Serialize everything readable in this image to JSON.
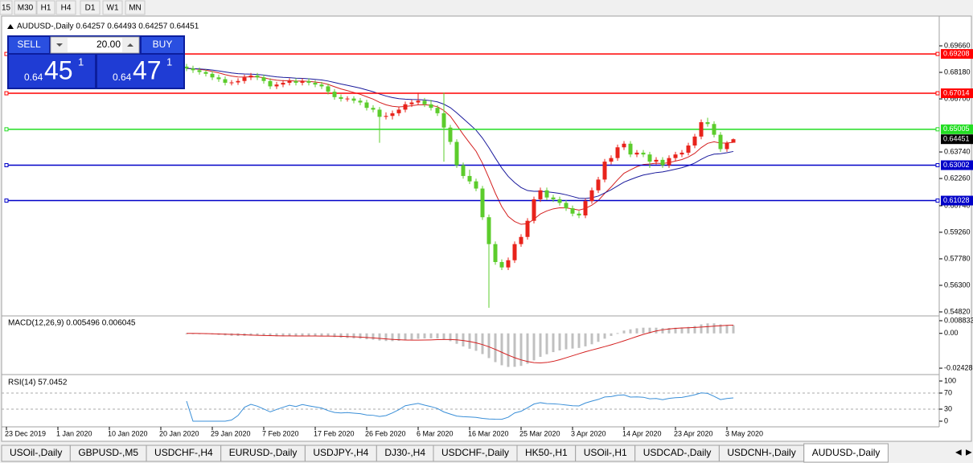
{
  "toolbar": {
    "timeframes": [
      "15",
      "M30",
      "H1",
      "H4",
      "D1",
      "W1",
      "MN"
    ]
  },
  "chart_data": {
    "type": "candlestick",
    "title": "AUDUSD-,Daily 0.64257 0.64493 0.64257 0.64451",
    "ylim": [
      0.5464,
      0.7132
    ],
    "yticks": [
      {
        "value": 0.6966,
        "label": "0.69660"
      },
      {
        "value": 0.6818,
        "label": "0.68180"
      },
      {
        "value": 0.667,
        "label": "0.66700"
      },
      {
        "value": 0.6374,
        "label": "0.63740"
      },
      {
        "value": 0.6226,
        "label": "0.62260"
      },
      {
        "value": 0.6074,
        "label": "0.60740"
      },
      {
        "value": 0.5926,
        "label": "0.59260"
      },
      {
        "value": 0.5778,
        "label": "0.57780"
      },
      {
        "value": 0.563,
        "label": "0.56300"
      },
      {
        "value": 0.5482,
        "label": "0.54820"
      }
    ],
    "xlim": [
      -1,
      144
    ],
    "xticks": [
      {
        "value": 0,
        "label": "23 Dec 2019"
      },
      {
        "value": 8,
        "label": "1 Jan 2020"
      },
      {
        "value": 16,
        "label": "10 Jan 2020"
      },
      {
        "value": 24,
        "label": "20 Jan 2020"
      },
      {
        "value": 32,
        "label": "29 Jan 2020"
      },
      {
        "value": 40,
        "label": "7 Feb 2020"
      },
      {
        "value": 48,
        "label": "17 Feb 2020"
      },
      {
        "value": 56,
        "label": "26 Feb 2020"
      },
      {
        "value": 64,
        "label": "6 Mar 2020"
      },
      {
        "value": 72,
        "label": "16 Mar 2020"
      },
      {
        "value": 80,
        "label": "25 Mar 2020"
      },
      {
        "value": 88,
        "label": "3 Apr 2020"
      },
      {
        "value": 96,
        "label": "14 Apr 2020"
      },
      {
        "value": 104,
        "label": "23 Apr 2020"
      },
      {
        "value": 112,
        "label": "3 May 2020"
      }
    ],
    "up_color": "#e8231b",
    "down_color": "#5ccc2c",
    "ma_colors": [
      "#d42020",
      "#1a1a9c"
    ],
    "candles": [
      [
        28,
        0.685,
        0.6865,
        0.6825,
        0.684
      ],
      [
        29,
        0.684,
        0.6855,
        0.6815,
        0.683
      ],
      [
        30,
        0.683,
        0.6845,
        0.6805,
        0.682
      ],
      [
        31,
        0.682,
        0.6835,
        0.6795,
        0.681
      ],
      [
        32,
        0.681,
        0.6825,
        0.6775,
        0.679
      ],
      [
        33,
        0.679,
        0.6805,
        0.6765,
        0.678
      ],
      [
        34,
        0.678,
        0.6795,
        0.6745,
        0.676
      ],
      [
        35,
        0.676,
        0.6775,
        0.6745,
        0.6762
      ],
      [
        36,
        0.6762,
        0.6785,
        0.6748,
        0.677
      ],
      [
        37,
        0.677,
        0.6805,
        0.6755,
        0.679
      ],
      [
        38,
        0.679,
        0.6815,
        0.6775,
        0.68
      ],
      [
        39,
        0.68,
        0.6815,
        0.6775,
        0.679
      ],
      [
        40,
        0.679,
        0.6805,
        0.6755,
        0.677
      ],
      [
        41,
        0.677,
        0.6785,
        0.6725,
        0.674
      ],
      [
        42,
        0.674,
        0.6765,
        0.6725,
        0.675
      ],
      [
        43,
        0.675,
        0.6775,
        0.6735,
        0.676
      ],
      [
        44,
        0.676,
        0.6785,
        0.6745,
        0.677
      ],
      [
        45,
        0.677,
        0.6785,
        0.6745,
        0.676
      ],
      [
        46,
        0.676,
        0.6785,
        0.6745,
        0.677
      ],
      [
        47,
        0.677,
        0.6785,
        0.6745,
        0.676
      ],
      [
        48,
        0.676,
        0.6775,
        0.6735,
        0.675
      ],
      [
        49,
        0.675,
        0.6765,
        0.6725,
        0.674
      ],
      [
        50,
        0.674,
        0.6755,
        0.6695,
        0.671
      ],
      [
        51,
        0.671,
        0.6725,
        0.6665,
        0.668
      ],
      [
        52,
        0.668,
        0.6695,
        0.6655,
        0.667
      ],
      [
        53,
        0.667,
        0.6685,
        0.6655,
        0.6672
      ],
      [
        54,
        0.6672,
        0.6685,
        0.6645,
        0.666
      ],
      [
        55,
        0.666,
        0.6675,
        0.6635,
        0.665
      ],
      [
        56,
        0.665,
        0.6665,
        0.6605,
        0.662
      ],
      [
        57,
        0.662,
        0.6635,
        0.6595,
        0.661
      ],
      [
        58,
        0.661,
        0.6625,
        0.6425,
        0.657
      ],
      [
        59,
        0.657,
        0.6595,
        0.6555,
        0.6575
      ],
      [
        60,
        0.6575,
        0.6605,
        0.6555,
        0.659
      ],
      [
        61,
        0.659,
        0.6625,
        0.6575,
        0.661
      ],
      [
        62,
        0.661,
        0.6655,
        0.6595,
        0.664
      ],
      [
        63,
        0.664,
        0.6665,
        0.6625,
        0.665
      ],
      [
        64,
        0.665,
        0.6705,
        0.6635,
        0.666
      ],
      [
        65,
        0.666,
        0.6675,
        0.6625,
        0.664
      ],
      [
        66,
        0.664,
        0.6665,
        0.6605,
        0.662
      ],
      [
        67,
        0.662,
        0.6635,
        0.6575,
        0.659
      ],
      [
        68,
        0.659,
        0.6705,
        0.632,
        0.651
      ],
      [
        69,
        0.651,
        0.6525,
        0.6415,
        0.643
      ],
      [
        70,
        0.643,
        0.6445,
        0.6285,
        0.63
      ],
      [
        71,
        0.63,
        0.6315,
        0.6225,
        0.624
      ],
      [
        72,
        0.624,
        0.6275,
        0.6195,
        0.621
      ],
      [
        73,
        0.621,
        0.6225,
        0.6155,
        0.617
      ],
      [
        74,
        0.617,
        0.6185,
        0.5995,
        0.601
      ],
      [
        75,
        0.601,
        0.6025,
        0.5505,
        0.586
      ],
      [
        76,
        0.586,
        0.5875,
        0.5745,
        0.576
      ],
      [
        77,
        0.576,
        0.5775,
        0.5715,
        0.573
      ],
      [
        78,
        0.573,
        0.5785,
        0.5715,
        0.577
      ],
      [
        79,
        0.577,
        0.5875,
        0.5755,
        0.586
      ],
      [
        80,
        0.586,
        0.5915,
        0.5845,
        0.59
      ],
      [
        81,
        0.59,
        0.6005,
        0.5885,
        0.599
      ],
      [
        82,
        0.599,
        0.6125,
        0.5975,
        0.611
      ],
      [
        83,
        0.611,
        0.6175,
        0.6095,
        0.616
      ],
      [
        84,
        0.616,
        0.6175,
        0.6105,
        0.612
      ],
      [
        85,
        0.612,
        0.6135,
        0.6095,
        0.611
      ],
      [
        86,
        0.611,
        0.6125,
        0.6075,
        0.609
      ],
      [
        87,
        0.609,
        0.6105,
        0.6045,
        0.606
      ],
      [
        88,
        0.606,
        0.6075,
        0.6015,
        0.603
      ],
      [
        89,
        0.603,
        0.6045,
        0.6005,
        0.602
      ],
      [
        90,
        0.602,
        0.6115,
        0.6005,
        0.61
      ],
      [
        91,
        0.61,
        0.6175,
        0.6085,
        0.616
      ],
      [
        92,
        0.616,
        0.6235,
        0.6145,
        0.622
      ],
      [
        93,
        0.622,
        0.6335,
        0.6205,
        0.632
      ],
      [
        94,
        0.632,
        0.6355,
        0.6305,
        0.634
      ],
      [
        95,
        0.634,
        0.6415,
        0.6325,
        0.64
      ],
      [
        96,
        0.64,
        0.6435,
        0.6385,
        0.642
      ],
      [
        97,
        0.642,
        0.6435,
        0.6345,
        0.636
      ],
      [
        98,
        0.636,
        0.6385,
        0.6345,
        0.637
      ],
      [
        99,
        0.637,
        0.6385,
        0.6345,
        0.636
      ],
      [
        100,
        0.636,
        0.6375,
        0.6285,
        0.632
      ],
      [
        101,
        0.632,
        0.6345,
        0.6305,
        0.633
      ],
      [
        102,
        0.633,
        0.6345,
        0.6285,
        0.63
      ],
      [
        103,
        0.63,
        0.6355,
        0.6285,
        0.634
      ],
      [
        104,
        0.634,
        0.6375,
        0.6325,
        0.636
      ],
      [
        105,
        0.636,
        0.6385,
        0.6345,
        0.637
      ],
      [
        106,
        0.637,
        0.6425,
        0.6355,
        0.641
      ],
      [
        107,
        0.641,
        0.6475,
        0.6395,
        0.646
      ],
      [
        108,
        0.646,
        0.6555,
        0.6445,
        0.654
      ],
      [
        109,
        0.654,
        0.6565,
        0.6515,
        0.653
      ],
      [
        110,
        0.653,
        0.6545,
        0.6455,
        0.647
      ],
      [
        111,
        0.647,
        0.6485,
        0.6375,
        0.639
      ],
      [
        112,
        0.639,
        0.6435,
        0.6375,
        0.6426
      ],
      [
        113,
        0.64257,
        0.64493,
        0.64257,
        0.64451
      ]
    ],
    "levels": [
      {
        "value": 0.69208,
        "color": "#ff0000"
      },
      {
        "value": 0.67014,
        "color": "#ff0000"
      },
      {
        "value": 0.65005,
        "color": "#22dd22"
      },
      {
        "value": 0.63002,
        "color": "#0000c8"
      },
      {
        "value": 0.61028,
        "color": "#0000c8"
      }
    ],
    "last_price": 0.64451
  },
  "macd": {
    "title": "MACD(12,26,9) 0.005496 0.006045",
    "ylim": [
      -0.0265,
      0.0105
    ],
    "yticks": [
      0.008833,
      {
        "value": 0,
        "label": "0.00"
      },
      -0.02428
    ],
    "bar_color": "#c0c0c0",
    "signal_color": "#d42020"
  },
  "rsi": {
    "title": "RSI(14) 57.0452",
    "ylim": [
      0,
      100
    ],
    "yticks": [
      100,
      70,
      30,
      0
    ],
    "levels": [
      70,
      30
    ],
    "color": "#3a8fd8"
  },
  "trade": {
    "sell": "SELL",
    "buy": "BUY",
    "volume": "20.00",
    "bid": [
      "0.64",
      "45",
      "1"
    ],
    "ask": [
      "0.64",
      "47",
      "1"
    ]
  },
  "tabs": [
    "USOil-,Daily",
    "GBPUSD-,M5",
    "USDCHF-,H4",
    "EURUSD-,Daily",
    "USDJPY-,H4",
    "DJ30-,H4",
    "USDCHF-,Daily",
    "HK50-,H1",
    "USOil-,H1",
    "USDCAD-,Daily",
    "USDCNH-,Daily",
    "AUDUSD-,Daily"
  ]
}
